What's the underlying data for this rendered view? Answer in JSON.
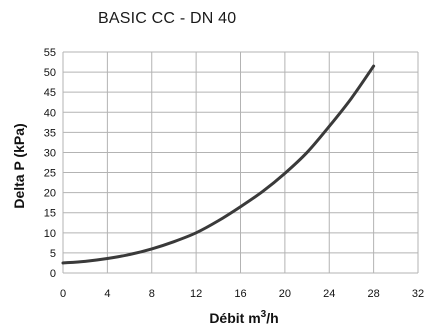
{
  "chart_data": {
    "type": "line",
    "title": "BASIC CC - DN 40",
    "xlabel_main": "Débit m",
    "xlabel_sup": "3",
    "xlabel_end": "/h",
    "ylabel": "Delta P (kPa)",
    "xlim": [
      0,
      32
    ],
    "ylim": [
      0,
      55
    ],
    "x_ticks": [
      "0",
      "4",
      "8",
      "12",
      "16",
      "20",
      "24",
      "28",
      "32"
    ],
    "y_ticks": [
      "0",
      "5",
      "10",
      "15",
      "20",
      "25",
      "30",
      "35",
      "40",
      "45",
      "50",
      "55"
    ],
    "grid": true,
    "series": [
      {
        "x": [
          0,
          2,
          4,
          6,
          8,
          10,
          12,
          14,
          16,
          18,
          20,
          22,
          24,
          26,
          28
        ],
        "y": [
          2.5,
          2.9,
          3.6,
          4.6,
          6.0,
          7.8,
          10.0,
          13.0,
          16.5,
          20.3,
          24.8,
          30.0,
          36.5,
          43.5,
          51.5
        ],
        "color": "#3a3a3a"
      }
    ]
  }
}
